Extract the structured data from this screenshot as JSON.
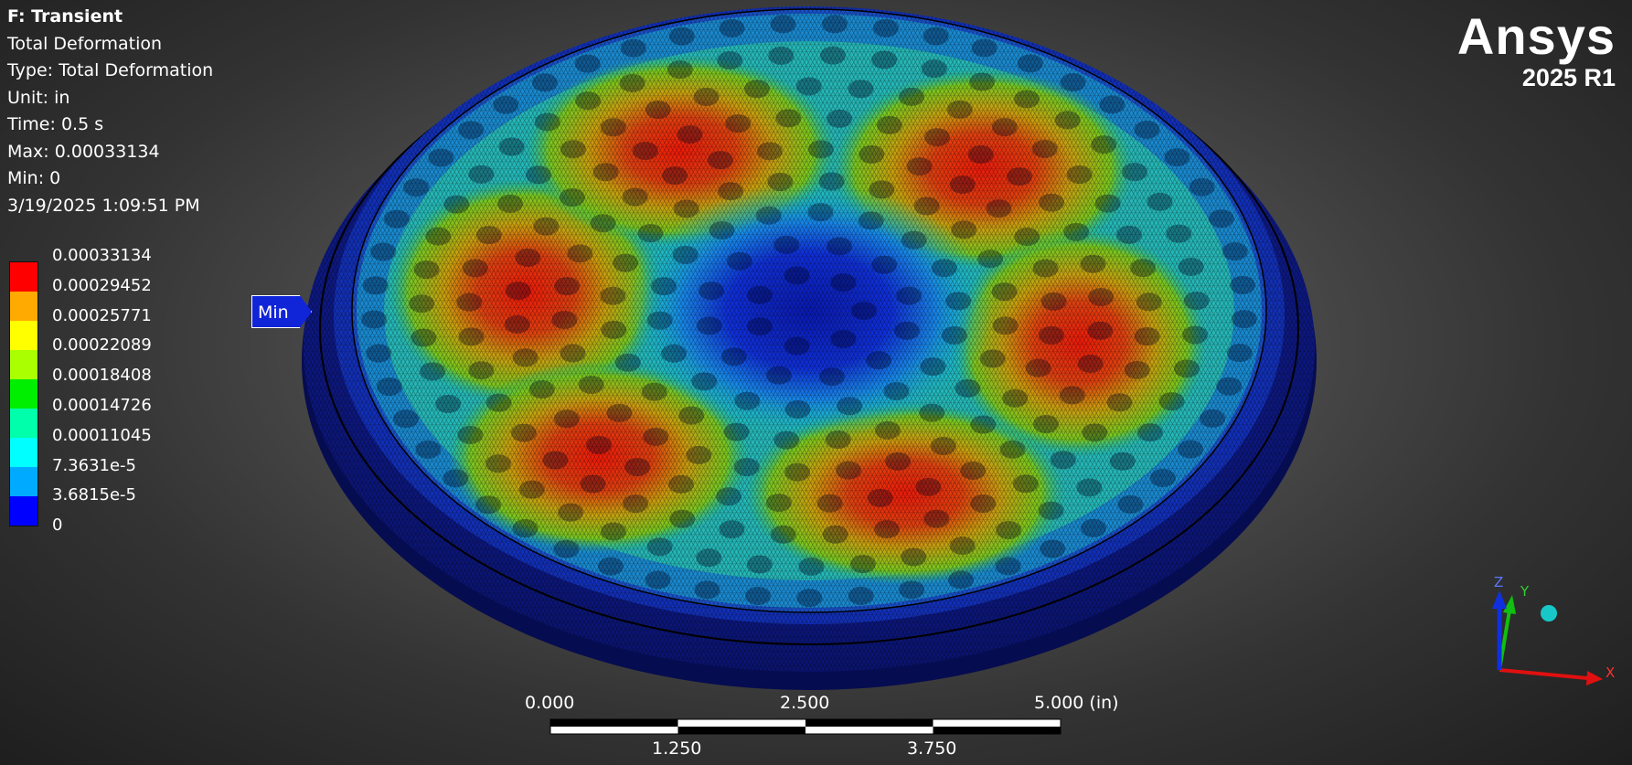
{
  "info": {
    "title": "F: Transient",
    "result_name": "Total Deformation",
    "type": "Type: Total Deformation",
    "unit": "Unit: in",
    "time": "Time: 0.5 s",
    "max": "Max: 0.00033134",
    "min": "Min: 0",
    "timestamp": "3/19/2025 1:09:51 PM"
  },
  "legend": {
    "values": [
      "0.00033134",
      "0.00029452",
      "0.00025771",
      "0.00022089",
      "0.00018408",
      "0.00014726",
      "0.00011045",
      "7.3631e-5",
      "3.6815e-5",
      "0"
    ],
    "colors": [
      "#ff0000",
      "#ffaa00",
      "#ffff00",
      "#aaff00",
      "#00ee00",
      "#00ffaa",
      "#00ffff",
      "#00aaff",
      "#0000ff"
    ]
  },
  "min_marker": {
    "label": "Min"
  },
  "logo": {
    "brand": "Ansys",
    "version": "2025 R1"
  },
  "scale_bar": {
    "top_labels": [
      "0.000",
      "2.500",
      "5.000 (in)"
    ],
    "bottom_labels": [
      "1.250",
      "3.750"
    ]
  },
  "triad": {
    "x_label": "X",
    "y_label": "Y",
    "z_label": "Z",
    "x_color": "#e01010",
    "y_color": "#10c010",
    "z_color": "#1030e0"
  }
}
